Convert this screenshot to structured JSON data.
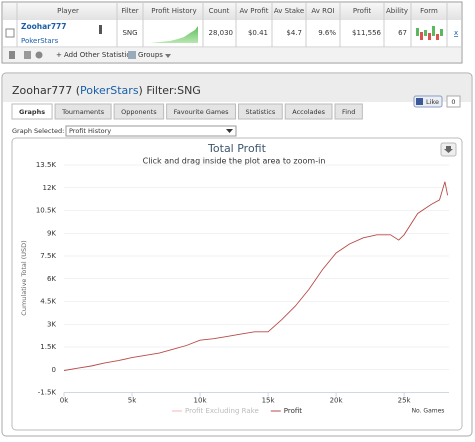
{
  "stats_table": {
    "columns": [
      "Player",
      "Filter",
      "Profit History",
      "Count",
      "Av Profit",
      "Av Stake",
      "Av ROI",
      "Profit",
      "Ability",
      "Form"
    ],
    "row": {
      "player": "Zoohar777",
      "site": "PokerStars",
      "filter": "SNG",
      "count": "28,030",
      "av_profit": "$0.41",
      "av_stake": "$4.7",
      "av_roi": "9.6%",
      "profit": "$11,556",
      "ability": "67",
      "remove": "x"
    }
  },
  "toolbar": {
    "add_stats": "Add Other Statistics",
    "groups": "Groups"
  },
  "panel": {
    "title_parts": [
      "Zoohar777 (",
      "PokerStars",
      ") Filter:SNG"
    ],
    "like": "Like",
    "like_count": "0",
    "tabs": [
      "Graphs",
      "Tournaments",
      "Opponents",
      "Favourite Games",
      "Statistics",
      "Accolades",
      "Find"
    ],
    "graph_label": "Graph Selected:",
    "graph_option": "Profit History"
  },
  "chart_data": {
    "type": "line",
    "title": "Total Profit",
    "subtitle": "Click and drag inside the plot area to zoom-in",
    "y_label": "Cumulative Total (USD)",
    "x_label": "No. Games",
    "x": [
      0,
      1000,
      2000,
      3000,
      4000,
      5000,
      6000,
      7000,
      8000,
      9000,
      10000,
      11000,
      12000,
      13000,
      14000,
      15000,
      16000,
      17000,
      18000,
      19000,
      20000,
      21000,
      22000,
      23000,
      24000,
      24600,
      25000,
      26000,
      27000,
      27600,
      28000,
      28200
    ],
    "series": [
      {
        "name": "Profit Excluding Rake",
        "color": "#f4b6b6",
        "hidden": true
      },
      {
        "name": "Profit",
        "color": "#b94a48",
        "values": [
          -50,
          100,
          250,
          450,
          600,
          800,
          950,
          1100,
          1350,
          1600,
          1950,
          2050,
          2200,
          2350,
          2500,
          2500,
          3300,
          4200,
          5300,
          6600,
          7700,
          8300,
          8700,
          8900,
          8900,
          8550,
          8900,
          10300,
          10900,
          11200,
          12400,
          11500
        ]
      }
    ],
    "xlim": [
      0,
      28300
    ],
    "ylim": [
      -1500,
      13500
    ],
    "xticks": [
      {
        "value": 0,
        "label": "0k"
      },
      {
        "value": 5000,
        "label": "5k"
      },
      {
        "value": 10000,
        "label": "10k"
      },
      {
        "value": 15000,
        "label": "15k"
      },
      {
        "value": 20000,
        "label": "20k"
      },
      {
        "value": 25000,
        "label": "25k"
      }
    ],
    "yticks": [
      {
        "value": -1500,
        "label": "-1.5K"
      },
      0,
      {
        "value": 1500,
        "label": "1.5K"
      },
      {
        "value": 3000,
        "label": "3K"
      },
      {
        "value": 4500,
        "label": "4.5K"
      },
      {
        "value": 6000,
        "label": "6K"
      },
      {
        "value": 7500,
        "label": "7.5K"
      },
      {
        "value": 9000,
        "label": "9K"
      },
      {
        "value": 10500,
        "label": "10.5K"
      },
      {
        "value": 12000,
        "label": "12K"
      },
      {
        "value": 13500,
        "label": "13.5K"
      }
    ],
    "grid": true
  }
}
